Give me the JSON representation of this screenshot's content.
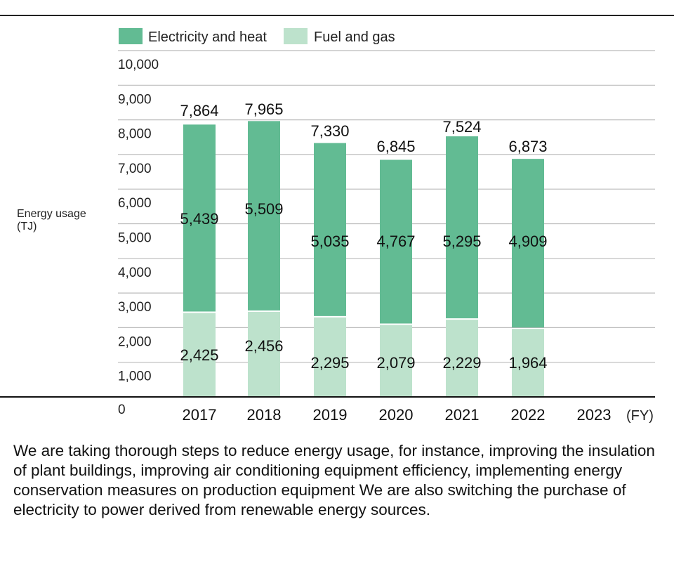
{
  "chart_data": {
    "type": "bar",
    "stacked": true,
    "categories": [
      "2017",
      "2018",
      "2019",
      "2020",
      "2021",
      "2022",
      "2023"
    ],
    "x_unit": "(FY)",
    "ylabel_line1": "Energy usage",
    "ylabel_line2": "(TJ)",
    "ylim": [
      0,
      10000
    ],
    "yticks": [
      "0",
      "1,000",
      "2,000",
      "3,000",
      "4,000",
      "5,000",
      "6,000",
      "7,000",
      "8,000",
      "9,000",
      "10,000"
    ],
    "grid": true,
    "legend_placement": "top-left",
    "series": [
      {
        "name": "Fuel and gas",
        "color": "#bde2cc",
        "values": [
          2425,
          2456,
          2295,
          2079,
          2229,
          1964,
          null
        ],
        "labels": [
          "2,425",
          "2,456",
          "2,295",
          "2,079",
          "2,229",
          "1,964",
          ""
        ]
      },
      {
        "name": "Electricity and heat",
        "color": "#62bb93",
        "values": [
          5439,
          5509,
          5035,
          4767,
          5295,
          4909,
          null
        ],
        "labels": [
          "5,439",
          "5,509",
          "5,035",
          "4,767",
          "5,295",
          "4,909",
          ""
        ]
      }
    ],
    "totals": [
      "7,864",
      "7,965",
      "7,330",
      "6,845",
      "7,524",
      "6,873",
      ""
    ]
  },
  "description": "We are taking thorough steps to reduce energy usage, for instance, improving the insulation of plant buildings, improving air conditioning equipment efficiency, implementing energy conservation measures on production equipment  We are also switching the purchase of electricity to power derived from renewable energy sources."
}
